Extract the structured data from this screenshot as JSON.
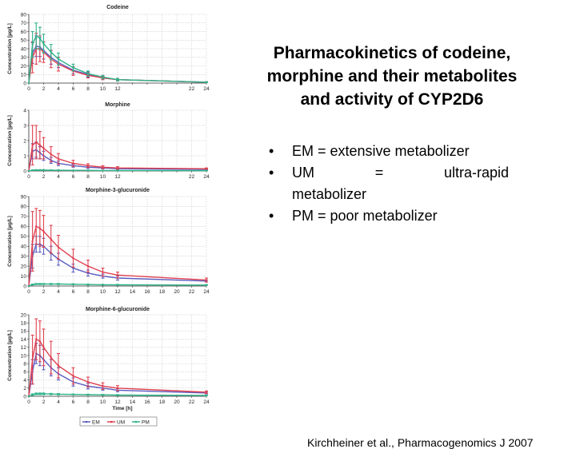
{
  "slide": {
    "title_lines": [
      "Pharmacokinetics of codeine,",
      "morphine and their metabolites",
      "and activity of CYP2D6"
    ],
    "bullets": [
      "EM = extensive metabolizer",
      "UM = ultra-rapid metabolizer",
      "PM = poor metabolizer"
    ],
    "um_parts": [
      "UM",
      "=",
      "ultra-rapid",
      "metabolizer"
    ],
    "bullet_glyph": "•",
    "citation": "Kirchheiner et al., Pharmacogenomics J 2007"
  },
  "colors": {
    "EM": "#5a5cc0",
    "UM": "#e0404f",
    "PM": "#2fb38a",
    "grid": "#bdbdbd",
    "axis": "#333333"
  },
  "chart_data": [
    {
      "type": "line",
      "title": "Codeine",
      "ylabel": "Concentration [µg/L]",
      "xlabel": "",
      "ylim": [
        0,
        80
      ],
      "yticks": [
        0,
        10,
        20,
        30,
        40,
        50,
        60,
        70,
        80
      ],
      "xticks": [
        0,
        2,
        4,
        6,
        8,
        10,
        12,
        14,
        16,
        18,
        20,
        22,
        24
      ],
      "xtick_labels": [
        "0",
        "2",
        "4",
        "6",
        "8",
        "10",
        "12",
        "",
        "",
        "",
        "",
        "22",
        "24"
      ],
      "grid": true,
      "series": [
        {
          "name": "EM",
          "x": [
            0,
            0.5,
            1,
            1.5,
            2,
            3,
            4,
            6,
            8,
            10,
            12,
            24
          ],
          "y": [
            0,
            35,
            43,
            42,
            38,
            30,
            24,
            15,
            10,
            6,
            4,
            1
          ],
          "err": [
            0,
            12,
            12,
            11,
            10,
            8,
            6,
            4,
            3,
            2,
            1.5,
            0.5
          ]
        },
        {
          "name": "UM",
          "x": [
            0,
            0.5,
            1,
            1.5,
            2,
            3,
            4,
            6,
            8,
            10,
            12,
            24
          ],
          "y": [
            0,
            30,
            40,
            40,
            36,
            28,
            22,
            14,
            9,
            6,
            4,
            1
          ],
          "err": [
            0,
            18,
            18,
            15,
            12,
            10,
            8,
            5,
            3,
            2,
            1.5,
            0.5
          ]
        },
        {
          "name": "PM",
          "x": [
            0,
            0.5,
            1,
            1.5,
            2,
            3,
            4,
            6,
            8,
            10,
            12,
            24
          ],
          "y": [
            0,
            45,
            55,
            52,
            46,
            36,
            28,
            18,
            11,
            7,
            4,
            1
          ],
          "err": [
            0,
            15,
            15,
            13,
            11,
            9,
            7,
            4,
            3,
            2,
            1.5,
            0.5
          ]
        }
      ]
    },
    {
      "type": "line",
      "title": "Morphine",
      "ylabel": "Concentration [µg/L]",
      "xlabel": "",
      "ylim": [
        0,
        4
      ],
      "yticks": [
        0,
        1,
        2,
        3,
        4
      ],
      "xticks": [
        0,
        2,
        4,
        6,
        8,
        10,
        12,
        14,
        16,
        18,
        20,
        22,
        24
      ],
      "xtick_labels": [
        "0",
        "2",
        "4",
        "6",
        "8",
        "10",
        "12",
        "",
        "",
        "",
        "",
        "22",
        "24"
      ],
      "grid": true,
      "series": [
        {
          "name": "EM",
          "x": [
            0,
            0.5,
            1,
            1.5,
            2,
            3,
            4,
            6,
            8,
            10,
            12,
            24
          ],
          "y": [
            0,
            1.3,
            1.4,
            1.2,
            1.0,
            0.7,
            0.5,
            0.35,
            0.25,
            0.2,
            0.15,
            0.1
          ],
          "err": [
            0,
            0.5,
            0.5,
            0.4,
            0.3,
            0.2,
            0.15,
            0.1,
            0.08,
            0.06,
            0.05,
            0.04
          ]
        },
        {
          "name": "UM",
          "x": [
            0,
            0.5,
            1,
            1.5,
            2,
            3,
            4,
            6,
            8,
            10,
            12,
            24
          ],
          "y": [
            0,
            1.7,
            1.9,
            1.7,
            1.5,
            1.1,
            0.8,
            0.5,
            0.35,
            0.25,
            0.2,
            0.15
          ],
          "err": [
            0,
            1.3,
            1.1,
            0.9,
            0.7,
            0.5,
            0.35,
            0.2,
            0.12,
            0.1,
            0.08,
            0.05
          ]
        },
        {
          "name": "PM",
          "x": [
            0,
            0.5,
            1,
            1.5,
            2,
            3,
            4,
            6,
            8,
            10,
            12,
            24
          ],
          "y": [
            0,
            0.05,
            0.06,
            0.06,
            0.06,
            0.05,
            0.05,
            0.04,
            0.04,
            0.03,
            0.03,
            0.02
          ],
          "err": [
            0,
            0.02,
            0.02,
            0.02,
            0.02,
            0.02,
            0.02,
            0.01,
            0.01,
            0.01,
            0.01,
            0.01
          ]
        }
      ]
    },
    {
      "type": "line",
      "title": "Morphine-3-glucuronide",
      "ylabel": "Concentration [µg/L]",
      "xlabel": "",
      "ylim": [
        0,
        90
      ],
      "yticks": [
        0,
        10,
        20,
        30,
        40,
        50,
        60,
        70,
        80,
        90
      ],
      "xticks": [
        0,
        2,
        4,
        6,
        8,
        10,
        12,
        14,
        16,
        18,
        20,
        22,
        24
      ],
      "xtick_labels": [
        "0",
        "2",
        "4",
        "6",
        "8",
        "10",
        "12",
        "14",
        "16",
        "18",
        "20",
        "22",
        "24"
      ],
      "grid": true,
      "series": [
        {
          "name": "EM",
          "x": [
            0,
            0.5,
            1,
            1.5,
            2,
            3,
            4,
            6,
            8,
            10,
            12,
            24
          ],
          "y": [
            0,
            30,
            42,
            42,
            40,
            33,
            27,
            18,
            13,
            10,
            8,
            5
          ],
          "err": [
            0,
            12,
            8,
            8,
            8,
            7,
            6,
            4,
            3,
            2,
            2,
            1
          ]
        },
        {
          "name": "UM",
          "x": [
            0,
            0.5,
            1,
            1.5,
            2,
            3,
            4,
            6,
            8,
            10,
            12,
            24
          ],
          "y": [
            0,
            45,
            60,
            58,
            55,
            47,
            39,
            28,
            20,
            14,
            11,
            6
          ],
          "err": [
            0,
            30,
            18,
            18,
            16,
            14,
            12,
            9,
            6,
            4,
            3,
            2
          ]
        },
        {
          "name": "PM",
          "x": [
            0,
            0.5,
            1,
            1.5,
            2,
            3,
            4,
            6,
            8,
            10,
            12,
            24
          ],
          "y": [
            0,
            1.5,
            2,
            2,
            2,
            2,
            2,
            1.8,
            1.5,
            1.3,
            1.2,
            1
          ],
          "err": [
            0,
            0.5,
            0.5,
            0.5,
            0.5,
            0.5,
            0.5,
            0.4,
            0.4,
            0.3,
            0.3,
            0.3
          ]
        }
      ]
    },
    {
      "type": "line",
      "title": "Morphine-6-glucuronide",
      "ylabel": "Concentration [µg/L]",
      "xlabel": "Time [h]",
      "ylim": [
        0,
        20
      ],
      "yticks": [
        0,
        2,
        4,
        6,
        8,
        10,
        12,
        14,
        16,
        18,
        20
      ],
      "xticks": [
        0,
        2,
        4,
        6,
        8,
        10,
        12,
        14,
        16,
        18,
        20,
        22,
        24
      ],
      "xtick_labels": [
        "0",
        "2",
        "4",
        "6",
        "8",
        "10",
        "12",
        "14",
        "16",
        "18",
        "20",
        "22",
        "24"
      ],
      "grid": true,
      "series": [
        {
          "name": "EM",
          "x": [
            0,
            0.5,
            1,
            1.5,
            2,
            3,
            4,
            6,
            8,
            10,
            12,
            24
          ],
          "y": [
            0,
            6,
            10.5,
            10,
            9,
            7,
            5.5,
            3.5,
            2.5,
            2,
            1.5,
            0.8
          ],
          "err": [
            0,
            3,
            2.5,
            2.5,
            2.5,
            2,
            1.5,
            1,
            0.7,
            0.5,
            0.4,
            0.2
          ]
        },
        {
          "name": "UM",
          "x": [
            0,
            0.5,
            1,
            1.5,
            2,
            3,
            4,
            6,
            8,
            10,
            12,
            24
          ],
          "y": [
            0,
            9,
            14,
            13.5,
            12,
            9.5,
            7.5,
            5,
            3.5,
            2.5,
            2,
            1
          ],
          "err": [
            0,
            6,
            5,
            5,
            4.5,
            4,
            3,
            2,
            1.2,
            0.8,
            0.6,
            0.3
          ]
        },
        {
          "name": "PM",
          "x": [
            0,
            0.5,
            1,
            1.5,
            2,
            3,
            4,
            6,
            8,
            10,
            12,
            24
          ],
          "y": [
            0,
            0.4,
            0.6,
            0.6,
            0.6,
            0.55,
            0.5,
            0.45,
            0.4,
            0.35,
            0.3,
            0.2
          ],
          "err": [
            0,
            0.2,
            0.2,
            0.2,
            0.2,
            0.15,
            0.15,
            0.1,
            0.1,
            0.1,
            0.1,
            0.05
          ]
        }
      ],
      "legend": [
        "EM",
        "UM",
        "PM"
      ],
      "legend_position": "bottom"
    }
  ]
}
